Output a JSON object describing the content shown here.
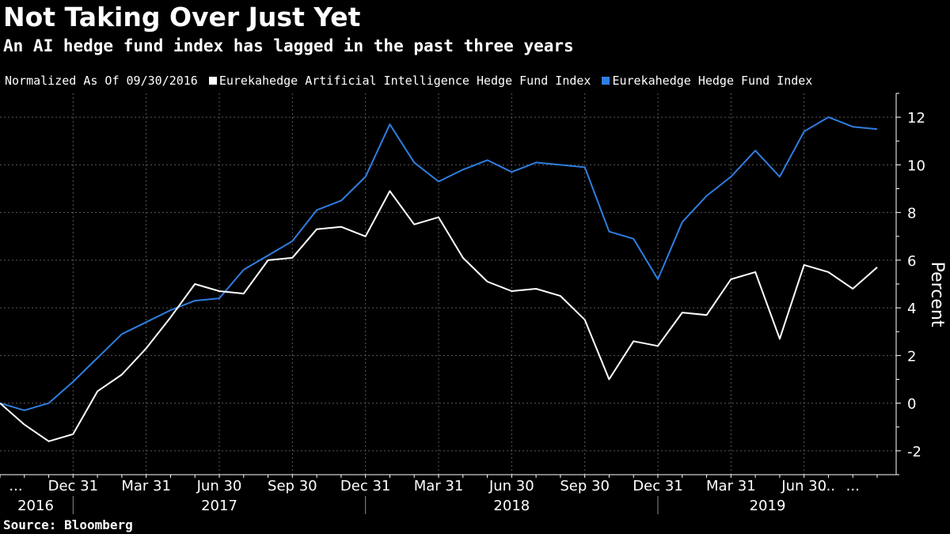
{
  "title": "Not Taking Over Just Yet",
  "subtitle": "An AI hedge fund index has lagged in the past three years",
  "legend_note": "Normalized As Of 09/30/2016",
  "source": "Source: Bloomberg",
  "colors": {
    "background": "#000000",
    "ai_series": "#ffffff",
    "hf_series": "#2f7ee0",
    "grid": "#5a5a5a"
  },
  "chart_data": {
    "type": "line",
    "title": "Not Taking Over Just Yet",
    "subtitle": "An AI hedge fund index has lagged in the past three years",
    "xlabel": "",
    "ylabel": "Percent",
    "ylim": [
      -3,
      13
    ],
    "yticks": [
      -2,
      0,
      2,
      4,
      6,
      8,
      10,
      12
    ],
    "grid": true,
    "legend_position": "top-left",
    "y_axis_side": "right",
    "x": [
      "2016-09-30",
      "2016-10-31",
      "2016-11-30",
      "2016-12-31",
      "2017-01-31",
      "2017-02-28",
      "2017-03-31",
      "2017-04-30",
      "2017-05-31",
      "2017-06-30",
      "2017-07-31",
      "2017-08-31",
      "2017-09-30",
      "2017-10-31",
      "2017-11-30",
      "2017-12-31",
      "2018-01-31",
      "2018-02-28",
      "2018-03-31",
      "2018-04-30",
      "2018-05-31",
      "2018-06-30",
      "2018-07-31",
      "2018-08-31",
      "2018-09-30",
      "2018-10-31",
      "2018-11-30",
      "2018-12-31",
      "2019-01-31",
      "2019-02-28",
      "2019-03-31",
      "2019-04-30",
      "2019-05-31",
      "2019-06-30",
      "2019-07-31",
      "2019-08-31",
      "2019-09-30"
    ],
    "x_ticks": [
      {
        "label": "...",
        "x": "2016-09-30"
      },
      {
        "label": "Dec 31",
        "x": "2016-12-31"
      },
      {
        "label": "Mar 31",
        "x": "2017-03-31"
      },
      {
        "label": "Jun 30",
        "x": "2017-06-30"
      },
      {
        "label": "Sep 30",
        "x": "2017-09-30"
      },
      {
        "label": "Dec 31",
        "x": "2017-12-31"
      },
      {
        "label": "Mar 31",
        "x": "2018-03-31"
      },
      {
        "label": "Jun 30",
        "x": "2018-06-30"
      },
      {
        "label": "Sep 30",
        "x": "2018-09-30"
      },
      {
        "label": "Dec 31",
        "x": "2018-12-31"
      },
      {
        "label": "Mar 31",
        "x": "2019-03-31"
      },
      {
        "label": "Jun 30",
        "x": "2019-06-30"
      },
      {
        "label": "...",
        "x": "2019-07-31"
      },
      {
        "label": "...",
        "x": "2019-08-31"
      }
    ],
    "year_labels": [
      {
        "label": "2016",
        "from": "2016-09-30",
        "to": "2016-12-31"
      },
      {
        "label": "2017",
        "from": "2016-12-31",
        "to": "2017-12-31"
      },
      {
        "label": "2018",
        "from": "2017-12-31",
        "to": "2018-12-31"
      },
      {
        "label": "2019",
        "from": "2018-12-31",
        "to": "2019-09-30"
      }
    ],
    "series": [
      {
        "name": "Eurekahedge Artificial Intelligence Hedge Fund Index",
        "color": "#ffffff",
        "values": [
          0.0,
          -0.9,
          -1.6,
          -1.3,
          0.5,
          1.2,
          2.3,
          3.6,
          5.0,
          4.7,
          4.6,
          6.0,
          6.1,
          7.3,
          7.4,
          7.0,
          8.9,
          7.5,
          7.8,
          6.1,
          5.1,
          4.7,
          4.8,
          4.5,
          3.5,
          1.0,
          2.6,
          2.4,
          3.8,
          3.7,
          5.2,
          5.5,
          2.7,
          5.8,
          5.5,
          4.8,
          5.7
        ]
      },
      {
        "name": "Eurekahedge Hedge Fund Index",
        "color": "#2f7ee0",
        "values": [
          0.0,
          -0.3,
          0.0,
          0.9,
          1.9,
          2.9,
          3.4,
          3.9,
          4.3,
          4.4,
          5.6,
          6.2,
          6.8,
          8.1,
          8.5,
          9.5,
          11.7,
          10.1,
          9.3,
          9.8,
          10.2,
          9.7,
          10.1,
          10.0,
          9.9,
          7.2,
          6.9,
          5.2,
          7.6,
          8.7,
          9.5,
          10.6,
          9.5,
          11.4,
          12.0,
          11.6,
          11.5
        ]
      }
    ]
  }
}
